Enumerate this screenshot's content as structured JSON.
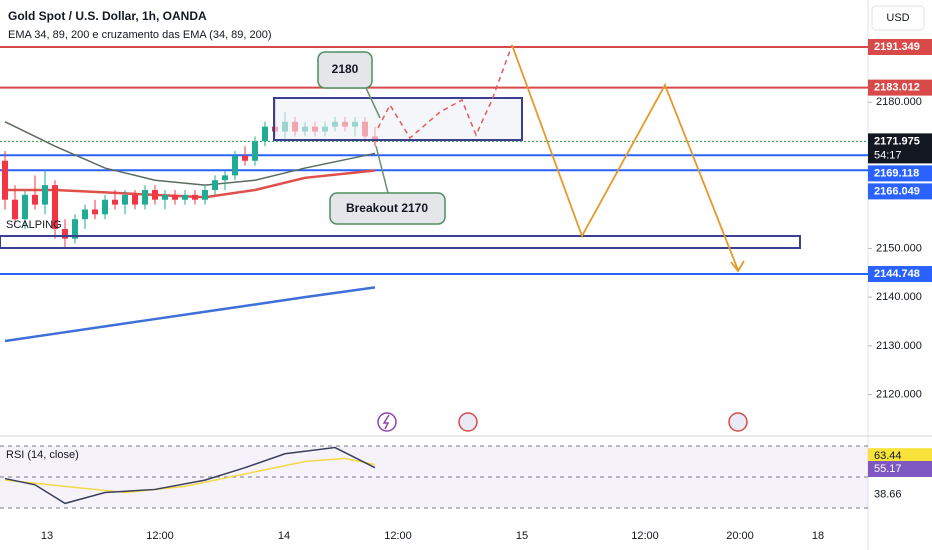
{
  "header": {
    "title": "Gold Spot / U.S. Dollar, 1h, OANDA",
    "indicator": "EMA 34, 89, 200 e cruzamento das EMA (34, 89, 200)",
    "currency": "USD"
  },
  "main": {
    "ylim": [
      2111.7,
      2201.0
    ],
    "yticks": [
      {
        "value": 2120,
        "label": "2120.000"
      },
      {
        "value": 2130,
        "label": "2130.000"
      },
      {
        "value": 2140,
        "label": "2140.000"
      },
      {
        "value": 2150,
        "label": "2150.000"
      },
      {
        "value": 2180,
        "label": "2180.000"
      }
    ],
    "levels": [
      {
        "value": 2191.349,
        "label": "2191.349",
        "color": "#d84a4a"
      },
      {
        "value": 2183.012,
        "label": "2183.012",
        "color": "#d84a4a"
      },
      {
        "value": 2171.975,
        "label": "2171.975",
        "countdown": "54:17",
        "color": "#131722"
      },
      {
        "value": 2169.118,
        "label": "2169.118",
        "color": "#2962ff"
      },
      {
        "value": 2166.049,
        "label": "2166.049",
        "color": "#2962ff"
      },
      {
        "value": 2144.748,
        "label": "2144.748",
        "color": "#2962ff"
      }
    ],
    "candles": [
      [
        2168,
        2170,
        2158,
        2160
      ],
      [
        2160,
        2163,
        2155,
        2156
      ],
      [
        2156,
        2162,
        2154,
        2161
      ],
      [
        2161,
        2165,
        2158,
        2159
      ],
      [
        2159,
        2166,
        2157,
        2163
      ],
      [
        2163,
        2164,
        2152,
        2154
      ],
      [
        2154,
        2156,
        2150,
        2152
      ],
      [
        2152,
        2157,
        2151,
        2156
      ],
      [
        2156,
        2159,
        2154,
        2158
      ],
      [
        2158,
        2160,
        2156,
        2157
      ],
      [
        2157,
        2161,
        2156,
        2160
      ],
      [
        2160,
        2162,
        2158,
        2159
      ],
      [
        2159,
        2162,
        2157,
        2161
      ],
      [
        2161,
        2162,
        2158,
        2159
      ],
      [
        2159,
        2163,
        2158,
        2162
      ],
      [
        2162,
        2163,
        2159,
        2160
      ],
      [
        2160,
        2162,
        2158,
        2161
      ],
      [
        2161,
        2162,
        2159,
        2160
      ],
      [
        2160,
        2162,
        2159,
        2161
      ],
      [
        2161,
        2162,
        2159,
        2160
      ],
      [
        2160,
        2163,
        2159,
        2162
      ],
      [
        2162,
        2165,
        2161,
        2164
      ],
      [
        2164,
        2166,
        2162,
        2165
      ],
      [
        2165,
        2170,
        2164,
        2169
      ],
      [
        2169,
        2171,
        2167,
        2168
      ],
      [
        2168,
        2173,
        2167,
        2172
      ],
      [
        2172,
        2176,
        2171,
        2175
      ],
      [
        2175,
        2181,
        2173,
        2174
      ],
      [
        2174,
        2178,
        2172,
        2176
      ],
      [
        2176,
        2177,
        2173,
        2174
      ],
      [
        2174,
        2176,
        2173,
        2175
      ],
      [
        2175,
        2176,
        2173,
        2174
      ],
      [
        2174,
        2176,
        2173,
        2175
      ],
      [
        2175,
        2177,
        2174,
        2176
      ],
      [
        2176,
        2177,
        2174,
        2175
      ],
      [
        2175,
        2177,
        2173,
        2176
      ],
      [
        2176,
        2177,
        2172,
        2173
      ],
      [
        2173,
        2175,
        2171,
        2172
      ]
    ],
    "ema": {
      "x": [
        0,
        5,
        10,
        15,
        20,
        25,
        30,
        37
      ],
      "series": [
        {
          "color": "#e0504a",
          "values": [
            2162,
            2162,
            2161.5,
            2161,
            2160.5,
            2162,
            2164.5,
            2166
          ]
        },
        {
          "color": "#5b6b5f",
          "values": [
            2176,
            2171,
            2166.5,
            2164,
            2163,
            2164,
            2166.5,
            2169.5
          ]
        },
        {
          "color": "#3f6fd8",
          "values": [
            2131,
            2132.5,
            2134,
            2135.5,
            2137,
            2138.5,
            2140,
            2142
          ]
        }
      ]
    }
  },
  "annotations": {
    "callout_high": "2180",
    "callout_breakout": "Breakout 2170",
    "scalping": "SCALPING"
  },
  "rsi": {
    "title": "RSI (14, close)",
    "ylim": [
      22.3,
      75.8
    ],
    "levels": [
      70,
      50,
      30
    ],
    "x": [
      0,
      3,
      6,
      10,
      15,
      20,
      24,
      28,
      33,
      37
    ],
    "values": [
      49,
      45,
      33,
      40,
      42,
      48,
      56,
      65,
      69,
      56
    ],
    "ma_x": [
      0,
      6,
      12,
      18,
      24,
      30,
      34,
      37
    ],
    "ma_values": [
      48,
      44,
      40,
      44,
      52,
      60,
      62,
      58
    ],
    "labels": [
      {
        "value": 63.44,
        "label": "63.44",
        "bg": "#f7e33a",
        "fg": "#131722"
      },
      {
        "value": 55.17,
        "label": "55.17",
        "bg": "#7e57c2",
        "fg": "#ffffff"
      },
      {
        "value": 38.66,
        "label": "38.66",
        "fg": "#131722"
      }
    ]
  },
  "time_axis": [
    "13",
    "12:00",
    "14",
    "12:00",
    "15",
    "12:00",
    "20:00",
    "18"
  ]
}
